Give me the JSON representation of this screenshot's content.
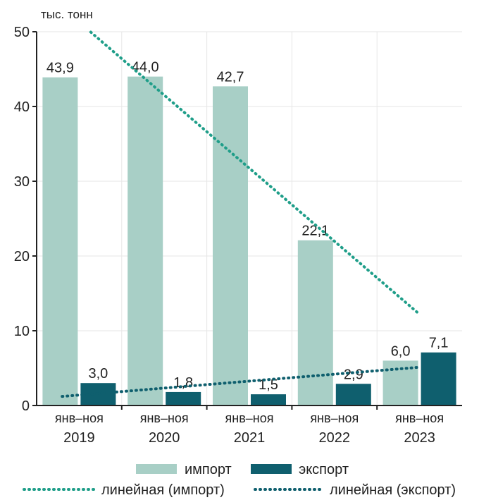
{
  "chart_data": {
    "type": "bar",
    "unit_label": "тыс. тонн",
    "categories": [
      [
        "янв–ноя",
        "2019"
      ],
      [
        "янв–ноя",
        "2020"
      ],
      [
        "янв–ноя",
        "2021"
      ],
      [
        "янв–ноя",
        "2022"
      ],
      [
        "янв–ноя",
        "2023"
      ]
    ],
    "series": [
      {
        "name": "импорт",
        "color": "#a8cfc6",
        "values": [
          43.9,
          44.0,
          42.7,
          22.1,
          6.0
        ],
        "labels": [
          "43,9",
          "44,0",
          "42,7",
          "22,1",
          "6,0"
        ]
      },
      {
        "name": "экспорт",
        "color": "#0f5f6e",
        "values": [
          3.0,
          1.8,
          1.5,
          2.9,
          7.1
        ],
        "labels": [
          "3,0",
          "1,8",
          "1,5",
          "2,9",
          "7,1"
        ]
      }
    ],
    "trendlines": [
      {
        "name": "линейная (импорт)",
        "color": "#1f9e89",
        "series": "импорт",
        "style": "dotted"
      },
      {
        "name": "линейная (экспорт)",
        "color": "#0f5f6e",
        "series": "экспорт",
        "style": "dotted"
      }
    ],
    "ylim": [
      0,
      50
    ],
    "yticks": [
      0,
      10,
      20,
      30,
      40,
      50
    ],
    "grid": true,
    "legend": "bottom"
  }
}
